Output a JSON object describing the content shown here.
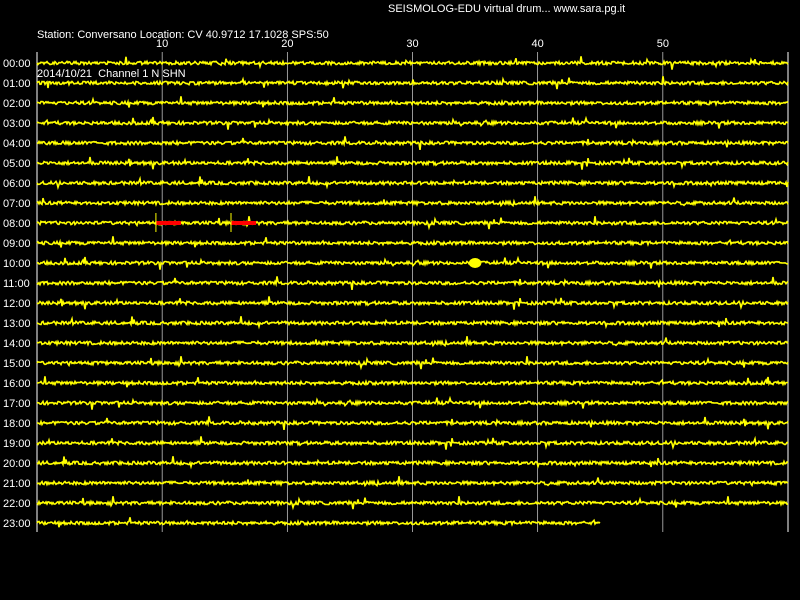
{
  "header": {
    "station_line": "Station: Conversano Location: CV 40.9712 17.1028 SPS:50",
    "date_channel_line": "2014/10/21  Channel 1 N SHN",
    "software_line": "SEISMOLOG-EDU virtual drum... www.sara.pg.it"
  },
  "colors": {
    "background": "#000000",
    "trace": "#ffff00",
    "marker": "#ff0000",
    "grid": "#ffffff",
    "text": "#ffffff"
  },
  "chart_data": {
    "type": "line",
    "title": "",
    "xlabel": "",
    "ylabel": "",
    "x_ticks": [
      10,
      20,
      30,
      40,
      50
    ],
    "xlim": [
      0,
      60
    ],
    "rows": [
      "00:00",
      "01:00",
      "02:00",
      "03:00",
      "04:00",
      "05:00",
      "06:00",
      "07:00",
      "08:00",
      "09:00",
      "10:00",
      "11:00",
      "12:00",
      "13:00",
      "14:00",
      "15:00",
      "16:00",
      "17:00",
      "18:00",
      "19:00",
      "20:00",
      "21:00",
      "22:00",
      "23:00"
    ],
    "last_row_end_minute": 45,
    "events": [
      {
        "row": "08:00",
        "minute": 9.5,
        "duration": 2,
        "color": "red"
      },
      {
        "row": "08:00",
        "minute": 15.5,
        "duration": 2,
        "color": "red"
      },
      {
        "row": "10:00",
        "minute": 34.5,
        "duration": 1,
        "color": "yellow"
      }
    ]
  }
}
